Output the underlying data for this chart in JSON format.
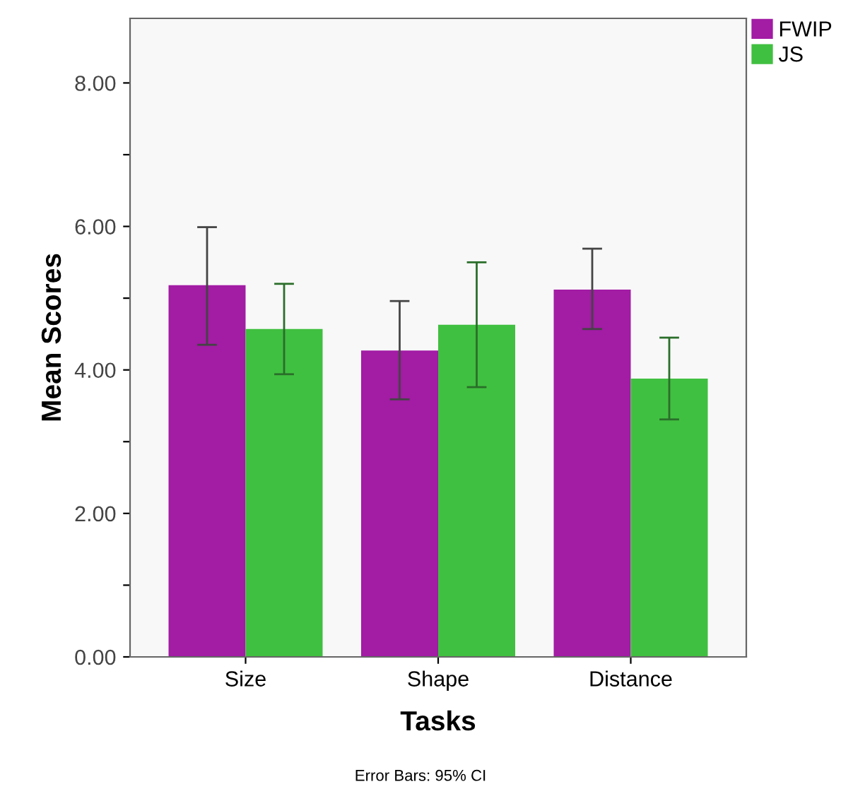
{
  "chart_data": {
    "type": "bar",
    "xlabel": "Tasks",
    "ylabel": "Mean Scores",
    "categories": [
      "Size",
      "Shape",
      "Distance"
    ],
    "series": [
      {
        "name": "FWIP",
        "color": "#a21ca4",
        "values": [
          5.18,
          4.27,
          5.12
        ],
        "errors": [
          [
            4.35,
            5.99
          ],
          [
            3.59,
            4.96
          ],
          [
            4.57,
            5.69
          ]
        ]
      },
      {
        "name": "JS",
        "color": "#40c040",
        "values": [
          4.57,
          4.63,
          3.88
        ],
        "errors": [
          [
            3.94,
            5.2
          ],
          [
            3.76,
            5.5
          ],
          [
            3.31,
            4.45
          ]
        ]
      }
    ],
    "ylim": [
      0,
      8.9
    ],
    "yticks": [
      {
        "value": 0,
        "label": "0.00"
      },
      {
        "value": 1,
        "label": null
      },
      {
        "value": 2,
        "label": "2.00"
      },
      {
        "value": 3,
        "label": null
      },
      {
        "value": 4,
        "label": "4.00"
      },
      {
        "value": 5,
        "label": null
      },
      {
        "value": 6,
        "label": "6.00"
      },
      {
        "value": 7,
        "label": null
      },
      {
        "value": 8,
        "label": "8.00"
      }
    ],
    "grid": false,
    "legend": "top right",
    "annotations": [
      "Error Bars: 95% CI"
    ]
  }
}
